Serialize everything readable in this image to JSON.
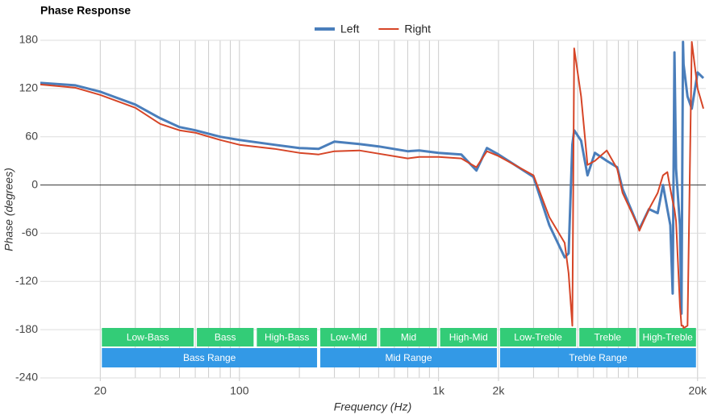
{
  "chart_data": {
    "type": "line",
    "title": "Phase Response",
    "xlabel": "Frequency (Hz)",
    "ylabel": "Phase (degrees)",
    "xscale": "log",
    "xlim": [
      10,
      22000
    ],
    "ylim": [
      -240,
      180
    ],
    "xticks": [
      20,
      100,
      {
        "value": 1000,
        "label": "1k"
      },
      {
        "value": 2000,
        "label": "2k"
      },
      {
        "value": 20000,
        "label": "20k"
      }
    ],
    "xgrid": [
      20,
      30,
      40,
      50,
      60,
      70,
      80,
      90,
      100,
      200,
      300,
      400,
      500,
      600,
      700,
      800,
      900,
      1000,
      2000,
      3000,
      4000,
      5000,
      6000,
      7000,
      8000,
      9000,
      10000,
      20000
    ],
    "yticks": [
      -240,
      -180,
      -120,
      -60,
      0,
      60,
      120,
      180
    ],
    "grid": true,
    "legend": "top",
    "x": [
      10,
      15,
      20,
      30,
      40,
      50,
      60,
      80,
      100,
      150,
      200,
      250,
      300,
      400,
      500,
      700,
      800,
      1000,
      1300,
      1550,
      1750,
      2000,
      3000,
      3600,
      4300,
      4500,
      4700,
      4800,
      5200,
      5600,
      6100,
      7000,
      7900,
      8400,
      10000,
      10200,
      11400,
      12600,
      13400,
      14100,
      14600,
      15000,
      15300,
      15600,
      16300,
      16600,
      16900,
      17000,
      17800,
      18700,
      20000,
      21400
    ],
    "series": [
      {
        "name": "Left",
        "color": "#4a7ebb",
        "values": [
          127,
          124,
          116,
          100,
          83,
          72,
          68,
          60,
          56,
          50,
          46,
          45,
          54,
          51,
          48,
          42,
          43,
          40,
          38,
          18,
          46,
          38,
          10,
          -50,
          -90,
          -85,
          50,
          68,
          55,
          12,
          40,
          30,
          22,
          -5,
          -50,
          -55,
          -30,
          -35,
          0,
          -30,
          -50,
          -135,
          165,
          20,
          -50,
          -160,
          178,
          150,
          110,
          95,
          140,
          133
        ]
      },
      {
        "name": "Right",
        "color": "#d64527",
        "values": [
          125,
          121,
          112,
          96,
          76,
          68,
          65,
          56,
          50,
          45,
          40,
          38,
          42,
          43,
          39,
          33,
          35,
          35,
          33,
          22,
          42,
          36,
          12,
          -40,
          -72,
          -110,
          -175,
          170,
          110,
          25,
          30,
          43,
          20,
          -10,
          -50,
          -57,
          -30,
          -10,
          12,
          16,
          -5,
          -20,
          -30,
          -45,
          -150,
          -175,
          -175,
          -178,
          -175,
          178,
          120,
          95
        ]
      }
    ],
    "bands": [
      {
        "label": "Low-Bass",
        "from": 20,
        "to": 60
      },
      {
        "label": "Bass",
        "from": 60,
        "to": 120
      },
      {
        "label": "High-Bass",
        "from": 120,
        "to": 250
      },
      {
        "label": "Low-Mid",
        "from": 250,
        "to": 500
      },
      {
        "label": "Mid",
        "from": 500,
        "to": 1000
      },
      {
        "label": "High-Mid",
        "from": 1000,
        "to": 2000
      },
      {
        "label": "Low-Treble",
        "from": 2000,
        "to": 5000
      },
      {
        "label": "Treble",
        "from": 5000,
        "to": 10000
      },
      {
        "label": "High-Treble",
        "from": 10000,
        "to": 20000
      }
    ],
    "band_color": "#33cc77",
    "ranges": [
      {
        "label": "Bass Range",
        "from": 20,
        "to": 250
      },
      {
        "label": "Mid Range",
        "from": 250,
        "to": 2000
      },
      {
        "label": "Treble Range",
        "from": 2000,
        "to": 20000
      }
    ],
    "range_color": "#3399e6"
  }
}
